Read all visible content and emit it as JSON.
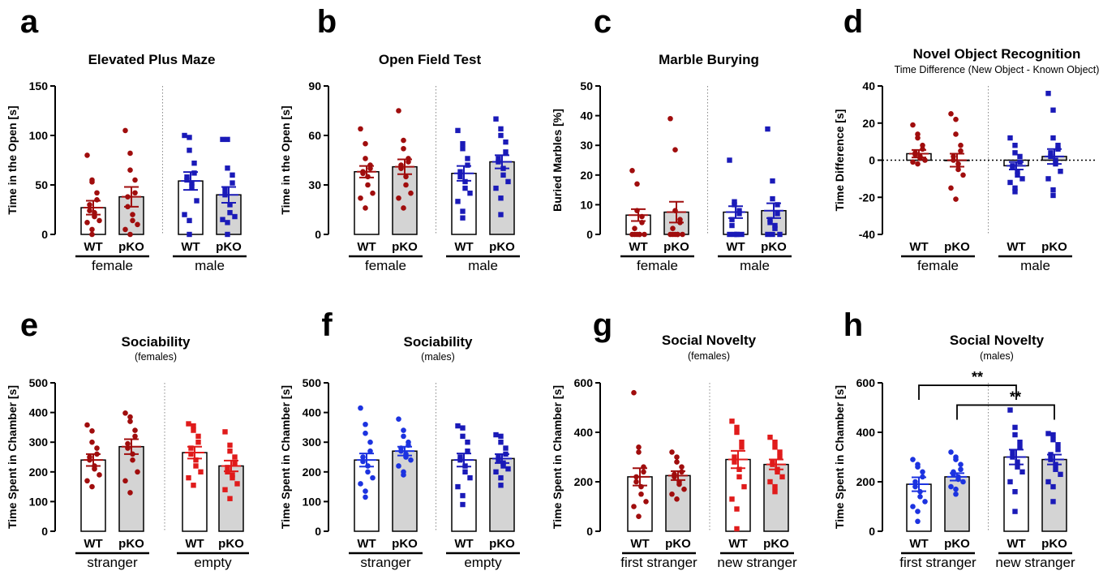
{
  "colors": {
    "female": "#a00d0d",
    "female_alt": "#e01b1b",
    "male": "#1a1ab8",
    "male_alt": "#1c33e0",
    "ko_fill": "#d4d4d4",
    "wt_fill": "#ffffff"
  },
  "chart_data": [
    {
      "panel_label": "a",
      "type": "bar",
      "title": "Elevated Plus Maze",
      "subtitle": "",
      "ylabel": "Time in the Open [s]",
      "ylim": [
        0,
        150
      ],
      "yticks": [
        "0",
        "50",
        "100",
        "150"
      ],
      "categories": [
        "WT",
        "pKO",
        "WT",
        "pKO"
      ],
      "groups": [
        "female",
        "male"
      ],
      "marker": "circle-female-square-male",
      "series": [
        {
          "group": "female",
          "genotype": "WT",
          "mean": 27,
          "sem": 7,
          "points": [
            80,
            55,
            53,
            42,
            35,
            30,
            24,
            22,
            18,
            14,
            12,
            5,
            0
          ]
        },
        {
          "group": "female",
          "genotype": "pKO",
          "mean": 38,
          "sem": 10,
          "points": [
            105,
            82,
            65,
            55,
            42,
            38,
            28,
            20,
            14,
            10,
            5,
            0
          ]
        },
        {
          "group": "male",
          "genotype": "WT",
          "mean": 54,
          "sem": 9,
          "points": [
            100,
            98,
            85,
            72,
            62,
            58,
            55,
            52,
            48,
            34,
            20,
            14,
            0
          ]
        },
        {
          "group": "male",
          "genotype": "pKO",
          "mean": 40,
          "sem": 8,
          "points": [
            96,
            96,
            67,
            60,
            52,
            45,
            40,
            30,
            22,
            18,
            15,
            12,
            0
          ]
        }
      ]
    },
    {
      "panel_label": "b",
      "type": "bar",
      "title": "Open Field Test",
      "subtitle": "",
      "ylabel": "Time in the Open [s]",
      "ylim": [
        0,
        90
      ],
      "yticks": [
        "0",
        "30",
        "60",
        "90"
      ],
      "categories": [
        "WT",
        "pKO",
        "WT",
        "pKO"
      ],
      "groups": [
        "female",
        "male"
      ],
      "marker": "circle-female-square-male",
      "series": [
        {
          "group": "female",
          "genotype": "WT",
          "mean": 38,
          "sem": 3.5,
          "points": [
            64,
            55,
            46,
            42,
            40,
            38,
            37,
            35,
            30,
            25,
            22,
            16
          ]
        },
        {
          "group": "female",
          "genotype": "pKO",
          "mean": 41,
          "sem": 4.5,
          "points": [
            75,
            57,
            52,
            46,
            44,
            42,
            40,
            35,
            30,
            25,
            22,
            16
          ]
        },
        {
          "group": "male",
          "genotype": "WT",
          "mean": 37,
          "sem": 4.5,
          "points": [
            63,
            55,
            52,
            46,
            42,
            38,
            35,
            32,
            28,
            25,
            20,
            14,
            10
          ]
        },
        {
          "group": "male",
          "genotype": "pKO",
          "mean": 44,
          "sem": 4,
          "points": [
            70,
            64,
            60,
            56,
            50,
            46,
            44,
            40,
            36,
            32,
            28,
            22,
            12
          ]
        }
      ]
    },
    {
      "panel_label": "c",
      "type": "bar",
      "title": "Marble Burying",
      "subtitle": "",
      "ylabel": "Buried Marbles [%]",
      "ylim": [
        0,
        50
      ],
      "yticks": [
        "0",
        "10",
        "20",
        "30",
        "40",
        "50"
      ],
      "categories": [
        "WT",
        "pKO",
        "WT",
        "pKO"
      ],
      "groups": [
        "female",
        "male"
      ],
      "marker": "circle-female-square-male",
      "series": [
        {
          "group": "female",
          "genotype": "WT",
          "mean": 6.5,
          "sem": 2,
          "points": [
            21.5,
            17,
            8,
            6,
            4,
            2,
            0,
            0,
            0,
            0,
            0,
            0
          ]
        },
        {
          "group": "female",
          "genotype": "pKO",
          "mean": 7.5,
          "sem": 3.5,
          "points": [
            39,
            28.5,
            8,
            5,
            4,
            2,
            0,
            0,
            0,
            0,
            0,
            0
          ]
        },
        {
          "group": "male",
          "genotype": "WT",
          "mean": 7.5,
          "sem": 2,
          "points": [
            25,
            11,
            10,
            8,
            7,
            5,
            3,
            0,
            0,
            0,
            0,
            0
          ]
        },
        {
          "group": "male",
          "genotype": "pKO",
          "mean": 8,
          "sem": 2.5,
          "points": [
            35.5,
            18,
            12,
            10,
            7,
            5,
            4,
            3,
            2,
            0,
            0,
            0
          ]
        }
      ]
    },
    {
      "panel_label": "d",
      "type": "bar",
      "title": "Novel Object Recognition",
      "subtitle": "Time Difference (New Object - Known Object)",
      "ylabel": "Time Difference [s]",
      "ylim": [
        -40,
        40
      ],
      "yticks": [
        "-40",
        "-20",
        "0",
        "20",
        "40"
      ],
      "zero_line": true,
      "categories": [
        "WT",
        "pKO",
        "WT",
        "pKO"
      ],
      "groups": [
        "female",
        "male"
      ],
      "marker": "circle-female-square-male",
      "series": [
        {
          "group": "female",
          "genotype": "WT",
          "mean": 3.5,
          "sem": 2,
          "points": [
            19,
            14,
            12,
            8,
            6,
            4,
            3,
            2,
            1,
            0,
            -1,
            -2
          ]
        },
        {
          "group": "female",
          "genotype": "pKO",
          "mean": 0,
          "sem": 3.5,
          "points": [
            25,
            22,
            14,
            8,
            5,
            2,
            0,
            -2,
            -5,
            -8,
            -15,
            -21
          ]
        },
        {
          "group": "male",
          "genotype": "WT",
          "mean": -3,
          "sem": 2,
          "points": [
            12,
            8,
            4,
            2,
            -1,
            -3,
            -4,
            -6,
            -8,
            -10,
            -12,
            -15,
            -17
          ]
        },
        {
          "group": "male",
          "genotype": "pKO",
          "mean": 2,
          "sem": 4,
          "points": [
            36,
            27,
            12,
            8,
            6,
            4,
            2,
            0,
            -2,
            -6,
            -10,
            -16,
            -19
          ]
        }
      ]
    },
    {
      "panel_label": "e",
      "type": "bar",
      "title": "Sociability",
      "subtitle": "(females)",
      "ylabel": "Time Spent in Chamber [s]",
      "ylim": [
        0,
        500
      ],
      "yticks": [
        "0",
        "100",
        "200",
        "300",
        "400",
        "500"
      ],
      "categories": [
        "WT",
        "pKO",
        "WT",
        "pKO"
      ],
      "groups": [
        "stranger",
        "empty"
      ],
      "marker": "circle-stranger-square-empty",
      "series": [
        {
          "group": "stranger",
          "genotype": "WT",
          "mean": 240,
          "sem": 20,
          "points": [
            358,
            338,
            300,
            280,
            260,
            250,
            240,
            220,
            210,
            190,
            170,
            150
          ]
        },
        {
          "group": "stranger",
          "genotype": "pKO",
          "mean": 285,
          "sem": 25,
          "points": [
            398,
            385,
            370,
            340,
            320,
            295,
            280,
            260,
            240,
            200,
            170,
            130
          ]
        },
        {
          "group": "empty",
          "genotype": "WT",
          "mean": 265,
          "sem": 20,
          "points": [
            362,
            355,
            340,
            320,
            300,
            280,
            260,
            240,
            220,
            200,
            180,
            155
          ]
        },
        {
          "group": "empty",
          "genotype": "pKO",
          "mean": 220,
          "sem": 18,
          "points": [
            335,
            290,
            270,
            250,
            230,
            215,
            200,
            190,
            180,
            160,
            140,
            110
          ]
        }
      ]
    },
    {
      "panel_label": "f",
      "type": "bar",
      "title": "Sociability",
      "subtitle": "(males)",
      "ylabel": "Time Spent in Chamber [s]",
      "ylim": [
        0,
        500
      ],
      "yticks": [
        "0",
        "100",
        "200",
        "300",
        "400",
        "500"
      ],
      "categories": [
        "WT",
        "pKO",
        "WT",
        "pKO"
      ],
      "groups": [
        "stranger",
        "empty"
      ],
      "marker": "circle-stranger-square-empty",
      "series": [
        {
          "group": "stranger",
          "genotype": "WT",
          "mean": 240,
          "sem": 22,
          "points": [
            415,
            360,
            330,
            300,
            270,
            250,
            235,
            220,
            200,
            180,
            160,
            135,
            115
          ]
        },
        {
          "group": "stranger",
          "genotype": "pKO",
          "mean": 270,
          "sem": 15,
          "points": [
            378,
            340,
            320,
            300,
            290,
            280,
            270,
            260,
            250,
            240,
            220,
            200,
            190
          ]
        },
        {
          "group": "empty",
          "genotype": "WT",
          "mean": 240,
          "sem": 22,
          "points": [
            355,
            348,
            320,
            300,
            270,
            250,
            240,
            220,
            200,
            180,
            150,
            120,
            90
          ]
        },
        {
          "group": "empty",
          "genotype": "pKO",
          "mean": 245,
          "sem": 15,
          "points": [
            325,
            320,
            300,
            280,
            260,
            250,
            240,
            230,
            220,
            210,
            200,
            180,
            155
          ]
        }
      ]
    },
    {
      "panel_label": "g",
      "type": "bar",
      "title": "Social Novelty",
      "subtitle": "(females)",
      "ylabel": "Time Spent in Chamber [s]",
      "ylim": [
        0,
        600
      ],
      "yticks": [
        "0",
        "200",
        "400",
        "600"
      ],
      "categories": [
        "WT",
        "pKO",
        "WT",
        "pKO"
      ],
      "groups": [
        "first stranger",
        "new stranger"
      ],
      "marker": "circle-first-square-new",
      "series": [
        {
          "group": "first stranger",
          "genotype": "WT",
          "mean": 220,
          "sem": 35,
          "points": [
            560,
            340,
            320,
            260,
            240,
            220,
            200,
            180,
            150,
            120,
            100,
            60
          ]
        },
        {
          "group": "first stranger",
          "genotype": "pKO",
          "mean": 225,
          "sem": 18,
          "points": [
            320,
            300,
            280,
            260,
            240,
            230,
            220,
            200,
            190,
            170,
            150,
            130
          ]
        },
        {
          "group": "new stranger",
          "genotype": "WT",
          "mean": 290,
          "sem": 35,
          "points": [
            445,
            420,
            400,
            360,
            340,
            300,
            280,
            250,
            220,
            180,
            130,
            90,
            10
          ]
        },
        {
          "group": "new stranger",
          "genotype": "pKO",
          "mean": 270,
          "sem": 20,
          "points": [
            380,
            360,
            340,
            320,
            300,
            280,
            270,
            250,
            240,
            220,
            200,
            180,
            160
          ]
        }
      ]
    },
    {
      "panel_label": "h",
      "type": "bar",
      "title": "Social Novelty",
      "subtitle": "(males)",
      "ylabel": "Time Spent in Chamber [s]",
      "ylim": [
        0,
        600
      ],
      "yticks": [
        "0",
        "200",
        "400",
        "600"
      ],
      "categories": [
        "WT",
        "pKO",
        "WT",
        "pKO"
      ],
      "groups": [
        "first stranger",
        "new stranger"
      ],
      "marker": "circle-first-square-new",
      "significance": [
        {
          "from": 0,
          "to": 2,
          "label": "**",
          "y": 590
        },
        {
          "from": 1,
          "to": 3,
          "label": "**",
          "y": 510
        }
      ],
      "series": [
        {
          "group": "first stranger",
          "genotype": "WT",
          "mean": 190,
          "sem": 28,
          "points": [
            290,
            270,
            260,
            240,
            220,
            200,
            180,
            160,
            140,
            120,
            100,
            80,
            40
          ]
        },
        {
          "group": "first stranger",
          "genotype": "pKO",
          "mean": 220,
          "sem": 15,
          "points": [
            320,
            300,
            290,
            270,
            250,
            240,
            230,
            220,
            210,
            200,
            180,
            170,
            150
          ]
        },
        {
          "group": "new stranger",
          "genotype": "WT",
          "mean": 300,
          "sem": 30,
          "points": [
            490,
            420,
            390,
            360,
            340,
            320,
            300,
            280,
            260,
            240,
            200,
            160,
            80
          ]
        },
        {
          "group": "new stranger",
          "genotype": "pKO",
          "mean": 290,
          "sem": 20,
          "points": [
            395,
            390,
            370,
            350,
            330,
            310,
            290,
            270,
            250,
            230,
            200,
            180,
            120
          ]
        }
      ]
    }
  ]
}
